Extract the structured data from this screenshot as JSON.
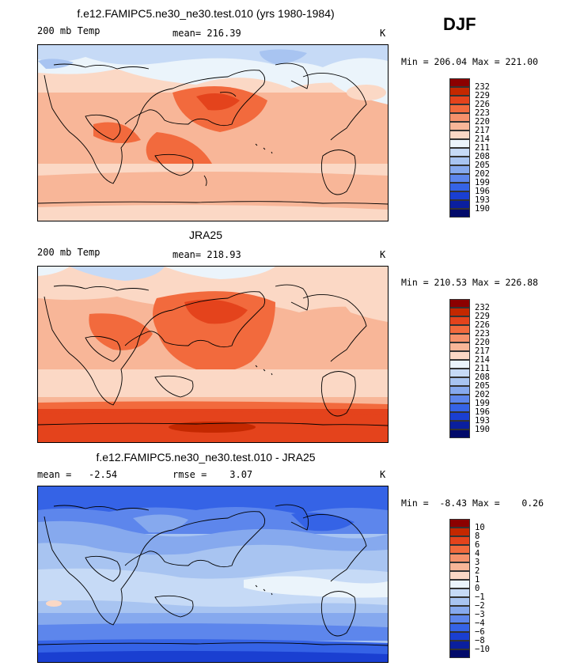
{
  "season": "DJF",
  "panels": [
    {
      "title": "f.e12.FAMIPC5.ne30_ne30.test.010 (yrs 1980-1984)",
      "left_label": "200 mb Temp",
      "center_label": "mean= 216.39",
      "units": "K",
      "range_label": "Min = 206.04 Max = 221.00",
      "levels": [
        "232",
        "229",
        "226",
        "223",
        "220",
        "217",
        "214",
        "211",
        "208",
        "205",
        "202",
        "199",
        "196",
        "193",
        "190"
      ],
      "colors": [
        "#8c0000",
        "#c42800",
        "#e4431c",
        "#f26a3d",
        "#f6916b",
        "#f8b698",
        "#fbd8c5",
        "#ebf4fb",
        "#c6daf6",
        "#a8c4f1",
        "#86a9ee",
        "#5d86ec",
        "#3563e6",
        "#1a3fd1",
        "#0a1f9e",
        "#020a6a"
      ]
    },
    {
      "title": "JRA25",
      "left_label": "200 mb Temp",
      "center_label": "mean= 218.93",
      "units": "K",
      "range_label": "Min = 210.53 Max = 226.88",
      "levels": [
        "232",
        "229",
        "226",
        "223",
        "220",
        "217",
        "214",
        "211",
        "208",
        "205",
        "202",
        "199",
        "196",
        "193",
        "190"
      ],
      "colors": [
        "#8c0000",
        "#c42800",
        "#e4431c",
        "#f26a3d",
        "#f6916b",
        "#f8b698",
        "#fbd8c5",
        "#ebf4fb",
        "#c6daf6",
        "#a8c4f1",
        "#86a9ee",
        "#5d86ec",
        "#3563e6",
        "#1a3fd1",
        "#0a1f9e",
        "#020a6a"
      ]
    },
    {
      "title": "f.e12.FAMIPC5.ne30_ne30.test.010 - JRA25",
      "left_label": "mean =   -2.54",
      "center_label": "rmse =    3.07",
      "units": "K",
      "range_label": "Min =  -8.43 Max =    0.26",
      "levels": [
        "10",
        "8",
        "6",
        "4",
        "3",
        "2",
        "1",
        "0",
        "−1",
        "−2",
        "−3",
        "−4",
        "−6",
        "−8",
        "−10"
      ],
      "colors": [
        "#8c0000",
        "#c42800",
        "#e4431c",
        "#f26a3d",
        "#f6916b",
        "#f8b698",
        "#fbd8c5",
        "#ebf4fb",
        "#c6daf6",
        "#a8c4f1",
        "#86a9ee",
        "#5d86ec",
        "#3563e6",
        "#1a3fd1",
        "#0a1f9e",
        "#020a6a"
      ]
    }
  ]
}
